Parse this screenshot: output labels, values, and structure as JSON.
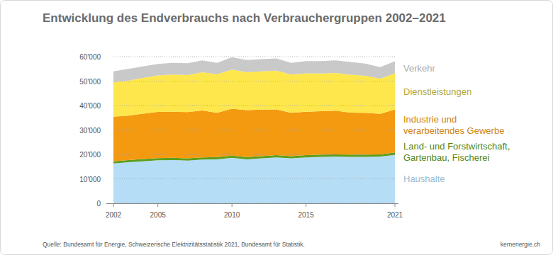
{
  "chart_data": {
    "type": "area",
    "stacked": true,
    "grid": true,
    "title": "Entwicklung des Endverbrauchs nach Verbrauchergruppen 2002–2021",
    "source": "Quelle: Bundesamt für Energie, Schweizerische Elektrizitätsstatistik 2021, Bundesamt für Statistik.",
    "credit": "kernenergie.ch",
    "x": [
      2002,
      2003,
      2004,
      2005,
      2006,
      2007,
      2008,
      2009,
      2010,
      2011,
      2012,
      2013,
      2014,
      2015,
      2016,
      2017,
      2018,
      2019,
      2020,
      2021
    ],
    "xlim": [
      2002,
      2021
    ],
    "xticks": [
      2002,
      2005,
      2010,
      2015,
      2021
    ],
    "ylim": [
      0,
      60000
    ],
    "yticks": [
      0,
      {
        "value": 10000,
        "label": "10'000"
      },
      {
        "value": 20000,
        "label": "20'000"
      },
      {
        "value": 30000,
        "label": "30'000"
      },
      {
        "value": 40000,
        "label": "40'000"
      },
      {
        "value": 50000,
        "label": "50'000"
      },
      {
        "value": 60000,
        "label": "60'000"
      }
    ],
    "series": [
      {
        "name": "Haushalte",
        "color": "#b5ddf6",
        "values": [
          16300,
          16800,
          17200,
          17600,
          17700,
          17500,
          17900,
          18000,
          18600,
          18000,
          18400,
          18800,
          18400,
          18800,
          19000,
          19100,
          19000,
          19000,
          19100,
          19800
        ]
      },
      {
        "name": "Land- und Forstwirtschaft,\nGartenbau, Fischerei",
        "color": "#5e9e1c",
        "values": [
          900,
          900,
          900,
          900,
          900,
          900,
          900,
          900,
          900,
          900,
          900,
          900,
          900,
          900,
          900,
          900,
          900,
          900,
          900,
          1000
        ]
      },
      {
        "name": "Industrie und\nverarbeitendes Gewerbe",
        "color": "#f39a10",
        "values": [
          18200,
          18200,
          18600,
          18900,
          18900,
          18900,
          19200,
          18100,
          19200,
          19200,
          19000,
          18700,
          17700,
          17800,
          17800,
          17900,
          17200,
          17100,
          16600,
          17600
        ]
      },
      {
        "name": "Dienstleistungen",
        "color": "#fde74c",
        "values": [
          14100,
          14300,
          14600,
          14900,
          15200,
          15200,
          15600,
          15800,
          16000,
          15500,
          15700,
          15900,
          15700,
          15700,
          15400,
          15400,
          15500,
          15200,
          14400,
          14700
        ]
      },
      {
        "name": "Verkehr",
        "color": "#c9c9c9",
        "values": [
          4500,
          4800,
          4700,
          4700,
          4800,
          4800,
          4900,
          4700,
          5100,
          5000,
          5000,
          5000,
          4800,
          5000,
          5100,
          5200,
          5200,
          5000,
          4700,
          5000
        ]
      }
    ]
  }
}
